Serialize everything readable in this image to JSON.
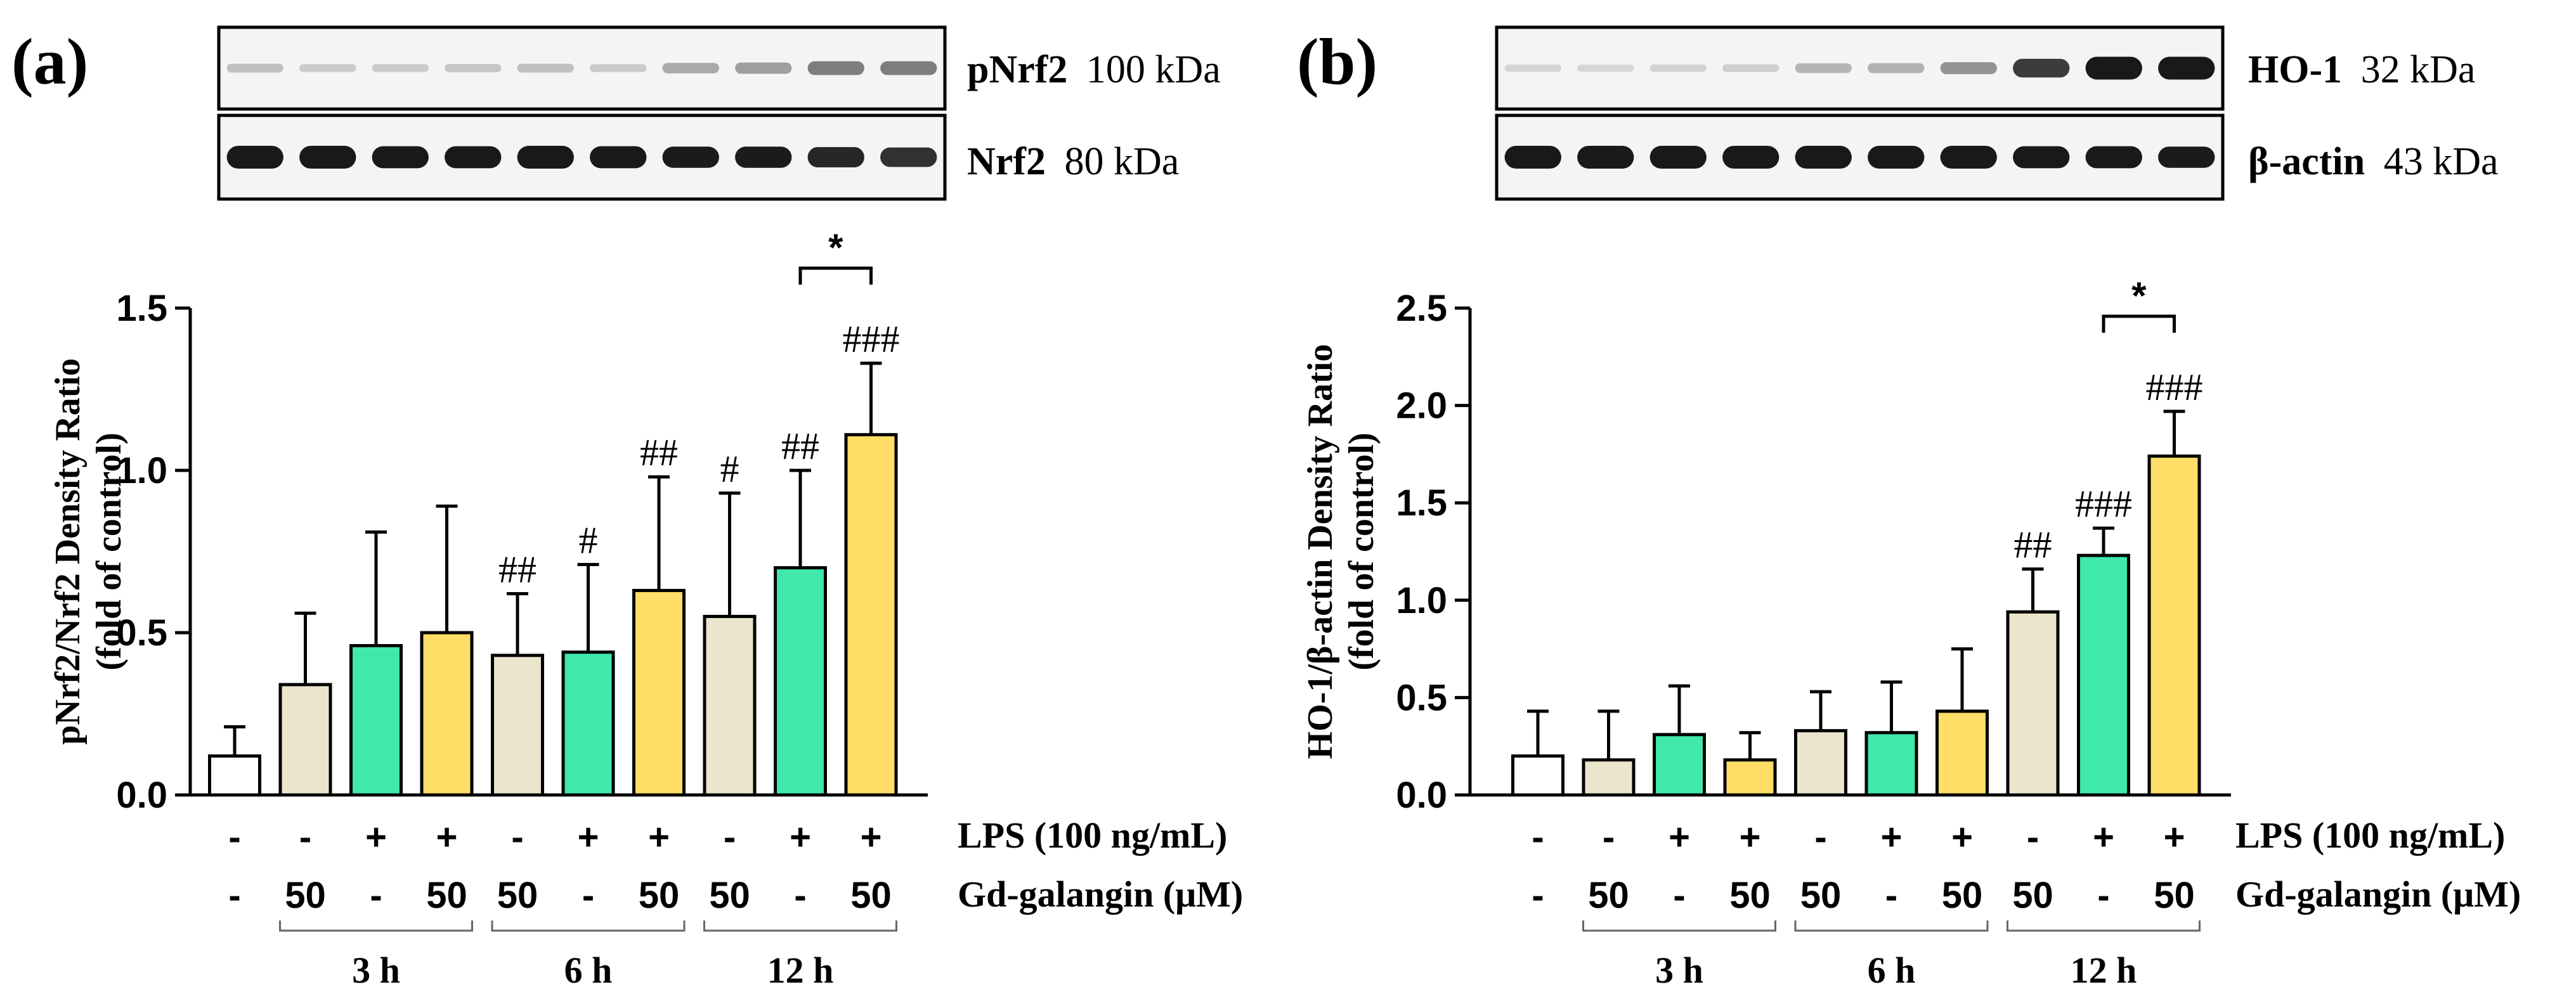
{
  "colors": {
    "control": "#ffffff",
    "gd_only": "#ebe5cd",
    "lps_only": "#40e8aa",
    "lps_gd": "#ffdd66",
    "blot_bg": "#f4f4f4",
    "band": "#161616",
    "stroke": "#000000"
  },
  "panel_a": {
    "letter": "(a)",
    "blot_top": {
      "label_bold": "pNrf2",
      "label_size": "100 kDa",
      "intensity": [
        0.15,
        0.1,
        0.1,
        0.12,
        0.15,
        0.1,
        0.25,
        0.3,
        0.45,
        0.45
      ]
    },
    "blot_bottom": {
      "label_bold": "Nrf2",
      "label_size": "80 kDa",
      "intensity": [
        1,
        1,
        0.95,
        0.95,
        1,
        0.95,
        0.9,
        0.9,
        0.85,
        0.8
      ]
    }
  },
  "panel_b": {
    "letter": "(b)",
    "blot_top": {
      "label_bold": "HO-1",
      "label_size": "32 kDa",
      "intensity": [
        0.06,
        0.05,
        0.07,
        0.08,
        0.2,
        0.22,
        0.35,
        0.75,
        1,
        1
      ]
    },
    "blot_bottom": {
      "label_bold": "β-actin",
      "label_size": "43 kDa",
      "intensity": [
        1,
        1,
        1,
        1,
        1,
        1,
        1,
        0.95,
        0.95,
        0.9
      ]
    }
  },
  "conditions": {
    "lps_row": [
      "-",
      "-",
      "+",
      "+",
      "-",
      "+",
      "+",
      "-",
      "+",
      "+"
    ],
    "gd_row": [
      "-",
      "50",
      "-",
      "50",
      "50",
      "-",
      "50",
      "50",
      "-",
      "50"
    ],
    "lps_label": "LPS (100 ng/mL)",
    "gd_label": "Gd-galangin (μM)",
    "time_groups": [
      {
        "label": "3 h",
        "from": 1,
        "to": 3
      },
      {
        "label": "6 h",
        "from": 4,
        "to": 6
      },
      {
        "label": "12 h",
        "from": 7,
        "to": 9
      }
    ]
  },
  "chart_data": [
    {
      "type": "bar",
      "ylabel_line1": "pNrf2/Nrf2 Density Ratio",
      "ylabel_line2": "(fold of control)",
      "ylim": [
        0,
        1.5
      ],
      "yticks": [
        "0.0",
        "0.5",
        "1.0",
        "1.5"
      ],
      "categories": [
        "Control",
        "Gd 3h",
        "LPS 3h",
        "LPS+Gd 3h",
        "Gd 6h",
        "LPS 6h",
        "LPS+Gd 6h",
        "Gd 12h",
        "LPS 12h",
        "LPS+Gd 12h"
      ],
      "values": [
        0.12,
        0.34,
        0.46,
        0.5,
        0.43,
        0.44,
        0.63,
        0.55,
        0.7,
        1.11
      ],
      "errors": [
        0.09,
        0.22,
        0.35,
        0.39,
        0.19,
        0.27,
        0.35,
        0.38,
        0.3,
        0.22
      ],
      "fill_keys": [
        "control",
        "gd_only",
        "lps_only",
        "lps_gd",
        "gd_only",
        "lps_only",
        "lps_gd",
        "gd_only",
        "lps_only",
        "lps_gd"
      ],
      "annotations": [
        "",
        "",
        "",
        "",
        "##",
        "#",
        "##",
        "#",
        "##",
        "###"
      ],
      "bracket": {
        "from": 8,
        "to": 9,
        "label": "*"
      }
    },
    {
      "type": "bar",
      "ylabel_line1": "HO-1/β-actin Density Ratio",
      "ylabel_line2": "(fold of control)",
      "ylim": [
        0,
        2.5
      ],
      "yticks": [
        "0.0",
        "0.5",
        "1.0",
        "1.5",
        "2.0",
        "2.5"
      ],
      "categories": [
        "Control",
        "Gd 3h",
        "LPS 3h",
        "LPS+Gd 3h",
        "Gd 6h",
        "LPS 6h",
        "LPS+Gd 6h",
        "Gd 12h",
        "LPS 12h",
        "LPS+Gd 12h"
      ],
      "values": [
        0.2,
        0.18,
        0.31,
        0.18,
        0.33,
        0.32,
        0.43,
        0.94,
        1.23,
        1.74
      ],
      "errors": [
        0.23,
        0.25,
        0.25,
        0.14,
        0.2,
        0.26,
        0.32,
        0.22,
        0.14,
        0.23
      ],
      "fill_keys": [
        "control",
        "gd_only",
        "lps_only",
        "lps_gd",
        "gd_only",
        "lps_only",
        "lps_gd",
        "gd_only",
        "lps_only",
        "lps_gd"
      ],
      "annotations": [
        "",
        "",
        "",
        "",
        "",
        "",
        "",
        "##",
        "###",
        "###"
      ],
      "bracket": {
        "from": 8,
        "to": 9,
        "label": "*"
      }
    }
  ]
}
